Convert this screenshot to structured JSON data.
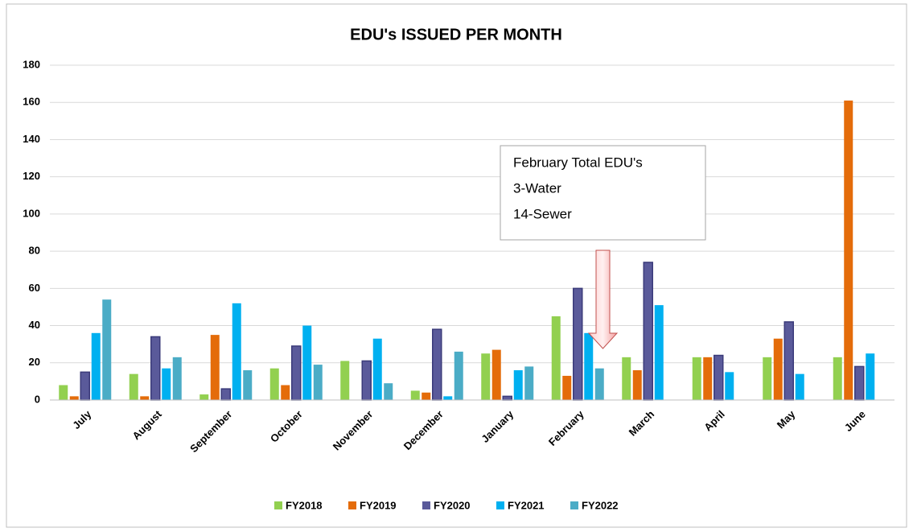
{
  "chart_data": {
    "type": "bar",
    "title": "EDU's ISSUED PER MONTH",
    "categories": [
      "July",
      "August",
      "September",
      "October",
      "November",
      "December",
      "January",
      "February",
      "March",
      "April",
      "May",
      "June"
    ],
    "series": [
      {
        "name": "FY2018",
        "color": "#92d050",
        "values": [
          8,
          14,
          3,
          17,
          21,
          5,
          25,
          45,
          23,
          23,
          23,
          23
        ]
      },
      {
        "name": "FY2019",
        "color": "#e46c0a",
        "values": [
          2,
          2,
          35,
          8,
          null,
          4,
          27,
          13,
          16,
          23,
          33,
          161
        ]
      },
      {
        "name": "FY2020",
        "color": "#5a5a9a",
        "values": [
          15,
          34,
          6,
          29,
          21,
          38,
          2,
          60,
          74,
          24,
          42,
          18
        ]
      },
      {
        "name": "FY2021",
        "color": "#00b0f0",
        "values": [
          36,
          17,
          52,
          40,
          33,
          2,
          16,
          36,
          51,
          15,
          14,
          25
        ]
      },
      {
        "name": "FY2022",
        "color": "#4bacc6",
        "values": [
          54,
          23,
          16,
          19,
          9,
          26,
          18,
          17,
          null,
          null,
          null,
          null
        ]
      }
    ],
    "ylim": [
      0,
      180
    ],
    "yticks": [
      0,
      20,
      40,
      60,
      80,
      100,
      120,
      140,
      160,
      180
    ],
    "grid": true,
    "annotation": [
      "February Total EDU's",
      "3-Water",
      "14-Sewer"
    ]
  }
}
